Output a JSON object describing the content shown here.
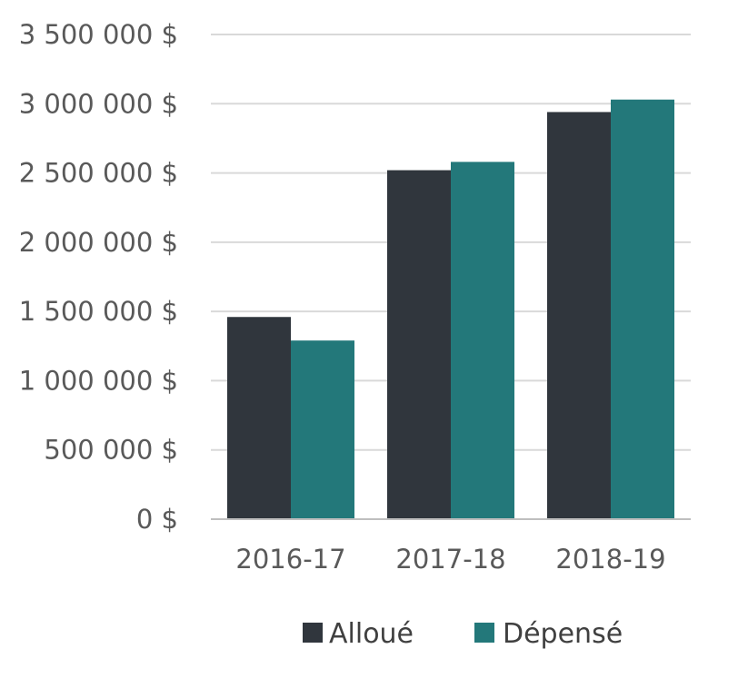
{
  "chart_data": {
    "type": "bar",
    "title": "",
    "xlabel": "",
    "ylabel": "",
    "categories": [
      "2016-17",
      "2017-18",
      "2018-19"
    ],
    "series": [
      {
        "name": "Alloué",
        "values": [
          1460000,
          2520000,
          2940000
        ],
        "color": "#30363d"
      },
      {
        "name": "Dépensé",
        "values": [
          1290000,
          2580000,
          3030000
        ],
        "color": "#23787a"
      }
    ],
    "ylim": [
      0,
      3500000
    ],
    "y_ticks": [
      {
        "value": 0,
        "label": "0 $"
      },
      {
        "value": 500000,
        "label": "500 000 $"
      },
      {
        "value": 1000000,
        "label": "1 000 000 $"
      },
      {
        "value": 1500000,
        "label": "1 500 000 $"
      },
      {
        "value": 2000000,
        "label": "2 000 000 $"
      },
      {
        "value": 2500000,
        "label": "2 500 000 $"
      },
      {
        "value": 3000000,
        "label": "3 000 000 $"
      },
      {
        "value": 3500000,
        "label": "3 500 000 $"
      }
    ],
    "grid": true,
    "legend_position": "bottom"
  }
}
